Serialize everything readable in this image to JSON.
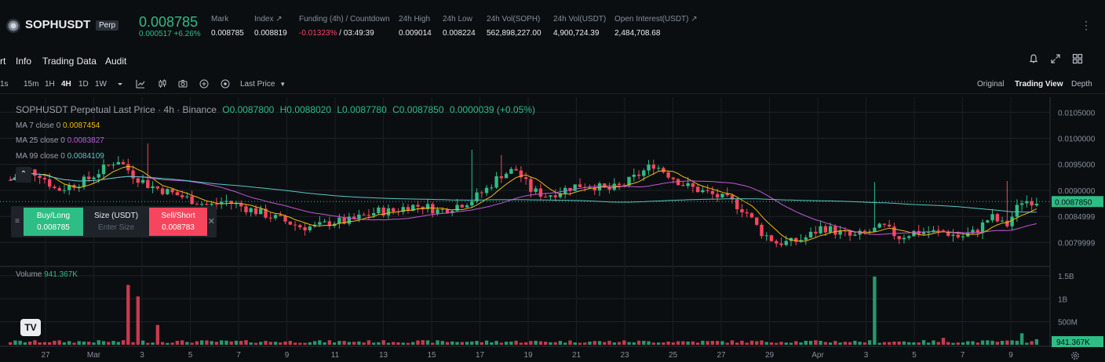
{
  "header": {
    "symbol": "SOPHUSDT",
    "badge": "Perp",
    "last_price": "0.008785",
    "change": "0.000517 +6.26%",
    "stats": [
      {
        "label": "Mark",
        "value": "0.008785"
      },
      {
        "label": "Index ↗",
        "value": "0.008819"
      },
      {
        "label": "Funding (4h) / Countdown",
        "value_red": "-0.01323%",
        "value_rest": " / 03:49:39"
      },
      {
        "label": "24h High",
        "value": "0.009014"
      },
      {
        "label": "24h Low",
        "value": "0.008224"
      },
      {
        "label": "24h Vol(SOPH)",
        "value": "562,898,227.00"
      },
      {
        "label": "24h Vol(USDT)",
        "value": "4,900,724.39"
      },
      {
        "label": "Open Interest(USDT) ↗",
        "value": "2,484,708.68"
      }
    ],
    "more": "⋮"
  },
  "tabs": [
    "rt",
    "Info",
    "Trading Data",
    "Audit"
  ],
  "tab_icons": [
    "bell-icon",
    "expand-icon",
    "grid-icon"
  ],
  "toolbar": {
    "intervals": [
      "1s",
      "15m",
      "1H",
      "4H",
      "1D",
      "1W"
    ],
    "active_interval": "4H",
    "price_type": "Last Price",
    "views": [
      "Original",
      "Trading View",
      "Depth"
    ],
    "active_view": "Trading View"
  },
  "chart_legend": {
    "title": "SOPHUSDT Perpetual Last Price · 4h · Binance",
    "o": "O0.0087800",
    "h": "H0.0088020",
    "l": "L0.0087780",
    "c": "C0.0087850",
    "chg": "0.0000039 (+0.05%)"
  },
  "ma": [
    {
      "label": "MA 7 close 0",
      "value": "0.0087454",
      "color": "#f0b90b"
    },
    {
      "label": "MA 25 close 0",
      "value": "0.0083827",
      "color": "#c158d4"
    },
    {
      "label": "MA 99 close 0",
      "value": "0.0084109",
      "color": "#56c7c1"
    }
  ],
  "volume_label": {
    "label": "Volume",
    "value": "941.367K"
  },
  "order_widget": {
    "buy_label": "Buy/Long",
    "buy_price": "0.008785",
    "size_label": "Size (USDT)",
    "size_placeholder": "Enter Size",
    "sell_label": "Sell/Short",
    "sell_price": "0.008783"
  },
  "chart_data": {
    "type": "candlestick",
    "price_axis": [
      "0.0105000",
      "0.0100000",
      "0.0095000",
      "0.0090000",
      "0.0084999",
      "0.0079999"
    ],
    "price_ylim": [
      0.0076,
      0.0107
    ],
    "current_price_label": "0.0087850",
    "volume_axis": [
      "1.5B",
      "1B",
      "500M"
    ],
    "volume_ylim": [
      0,
      1600000
    ],
    "current_volume_label": "941.367K",
    "x_labels": [
      "27",
      "Mar",
      "3",
      "5",
      "7",
      "9",
      "11",
      "13",
      "15",
      "17",
      "19",
      "21",
      "23",
      "25",
      "27",
      "29",
      "Apr",
      "3",
      "5",
      "7",
      "9"
    ],
    "colors": {
      "up": "#2ebd85",
      "down": "#f6465d"
    },
    "closes": [
      0.0092,
      0.0094,
      0.0093,
      0.009,
      0.0091,
      0.0092,
      0.0094,
      0.0096,
      0.0093,
      0.0091,
      0.009,
      0.0089,
      0.0088,
      0.0087,
      0.0088,
      0.0087,
      0.0086,
      0.0085,
      0.0084,
      0.0083,
      0.0083,
      0.0084,
      0.0084,
      0.0085,
      0.0086,
      0.0086,
      0.0087,
      0.0087,
      0.0086,
      0.0087,
      0.0088,
      0.009,
      0.0093,
      0.0094,
      0.009,
      0.0089,
      0.009,
      0.0091,
      0.0091,
      0.009,
      0.0091,
      0.0093,
      0.0095,
      0.0093,
      0.0091,
      0.009,
      0.0089,
      0.0088,
      0.0086,
      0.0082,
      0.008,
      0.008,
      0.0081,
      0.0083,
      0.0082,
      0.0081,
      0.0082,
      0.0083,
      0.0081,
      0.0082,
      0.0082,
      0.0082,
      0.0081,
      0.0082,
      0.0085,
      0.0083,
      0.0088,
      0.0088
    ]
  }
}
